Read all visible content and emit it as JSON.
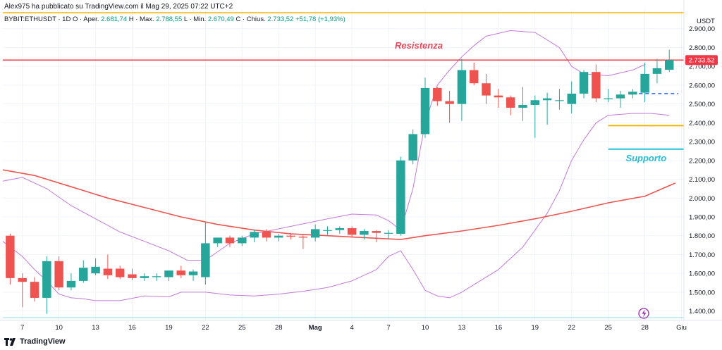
{
  "header": {
    "publisher_line": "Alex975 ha pubblicato su TradingView.com il Mag 29, 2025 07:22 UTC+2",
    "symbol": "BYBIT:ETHUSDT · 1D",
    "ohlc": {
      "open_label": "O · Aper.",
      "open": "2.681,74",
      "high_label": "H · Max.",
      "high": "2.788,55",
      "low_label": "L · Min.",
      "low": "2.670,49",
      "close_label": "C · Chius.",
      "close": "2.733,52",
      "change": "+51,78 (+1,93%)"
    }
  },
  "footer": {
    "brand": "TradingView"
  },
  "colors": {
    "up": "#26a69a",
    "down": "#ef5350",
    "resistance": "#f23645",
    "support": "#22c3d6",
    "ma": "#ef5350",
    "bollinger": "#c27ad9",
    "orange_level": "#f5b400",
    "blue_dashed": "#2962ff",
    "grid": "#f0f3fa"
  },
  "chart_data": {
    "type": "candlestick",
    "currency_label": "USDT",
    "ylim": [
      1350,
      3000
    ],
    "y_ticks": [
      1400,
      1500,
      1600,
      1700,
      1800,
      1900,
      2000,
      2100,
      2200,
      2300,
      2400,
      2500,
      2600,
      2700,
      2800,
      2900
    ],
    "y_tick_labels": [
      "1.400,00",
      "1.500,00",
      "1.600,00",
      "1.700,00",
      "1.800,00",
      "1.900,00",
      "2.000,00",
      "2.100,00",
      "2.200,00",
      "2.300,00",
      "2.400,00",
      "2.500,00",
      "2.600,00",
      "2.700,00",
      "2.800,00",
      "2.900,00"
    ],
    "x_ticks": [
      {
        "day": 7,
        "label": "7"
      },
      {
        "day": 10,
        "label": "10"
      },
      {
        "day": 13,
        "label": "13"
      },
      {
        "day": 16,
        "label": "16"
      },
      {
        "day": 19,
        "label": "19"
      },
      {
        "day": 22,
        "label": "22"
      },
      {
        "day": 25,
        "label": "25"
      },
      {
        "day": 28,
        "label": "28"
      },
      {
        "day": 31,
        "label": "Mag"
      },
      {
        "day": 34,
        "label": "4"
      },
      {
        "day": 37,
        "label": "7"
      },
      {
        "day": 40,
        "label": "10"
      },
      {
        "day": 43,
        "label": "13"
      },
      {
        "day": 46,
        "label": "16"
      },
      {
        "day": 49,
        "label": "19"
      },
      {
        "day": 52,
        "label": "22"
      },
      {
        "day": 55,
        "label": "25"
      },
      {
        "day": 58,
        "label": "28"
      },
      {
        "day": 61,
        "label": "Giu"
      }
    ],
    "x_range": [
      5.4,
      61.2
    ],
    "candles": [
      {
        "day": 6,
        "o": 1800,
        "h": 1810,
        "l": 1540,
        "c": 1575
      },
      {
        "day": 7,
        "o": 1575,
        "h": 1600,
        "l": 1420,
        "c": 1555
      },
      {
        "day": 8,
        "o": 1555,
        "h": 1580,
        "l": 1450,
        "c": 1470
      },
      {
        "day": 9,
        "o": 1470,
        "h": 1690,
        "l": 1385,
        "c": 1665
      },
      {
        "day": 10,
        "o": 1665,
        "h": 1690,
        "l": 1510,
        "c": 1525
      },
      {
        "day": 11,
        "o": 1525,
        "h": 1600,
        "l": 1510,
        "c": 1560
      },
      {
        "day": 12,
        "o": 1560,
        "h": 1670,
        "l": 1550,
        "c": 1630
      },
      {
        "day": 13,
        "o": 1600,
        "h": 1680,
        "l": 1590,
        "c": 1635
      },
      {
        "day": 14,
        "o": 1625,
        "h": 1700,
        "l": 1570,
        "c": 1590
      },
      {
        "day": 15,
        "o": 1625,
        "h": 1640,
        "l": 1570,
        "c": 1580
      },
      {
        "day": 16,
        "o": 1595,
        "h": 1625,
        "l": 1565,
        "c": 1575
      },
      {
        "day": 17,
        "o": 1575,
        "h": 1600,
        "l": 1560,
        "c": 1585
      },
      {
        "day": 18,
        "o": 1580,
        "h": 1600,
        "l": 1560,
        "c": 1585
      },
      {
        "day": 19,
        "o": 1580,
        "h": 1610,
        "l": 1560,
        "c": 1615
      },
      {
        "day": 20,
        "o": 1615,
        "h": 1640,
        "l": 1575,
        "c": 1590
      },
      {
        "day": 21,
        "o": 1590,
        "h": 1620,
        "l": 1560,
        "c": 1610
      },
      {
        "day": 22,
        "o": 1580,
        "h": 1870,
        "l": 1540,
        "c": 1760
      },
      {
        "day": 23,
        "o": 1760,
        "h": 1790,
        "l": 1740,
        "c": 1790
      },
      {
        "day": 24,
        "o": 1790,
        "h": 1800,
        "l": 1740,
        "c": 1760
      },
      {
        "day": 25,
        "o": 1760,
        "h": 1800,
        "l": 1745,
        "c": 1790
      },
      {
        "day": 26,
        "o": 1790,
        "h": 1830,
        "l": 1765,
        "c": 1820
      },
      {
        "day": 27,
        "o": 1820,
        "h": 1835,
        "l": 1770,
        "c": 1790
      },
      {
        "day": 28,
        "o": 1790,
        "h": 1810,
        "l": 1770,
        "c": 1800
      },
      {
        "day": 29,
        "o": 1800,
        "h": 1815,
        "l": 1780,
        "c": 1795
      },
      {
        "day": 30,
        "o": 1795,
        "h": 1810,
        "l": 1730,
        "c": 1790
      },
      {
        "day": 31,
        "o": 1790,
        "h": 1860,
        "l": 1770,
        "c": 1835
      },
      {
        "day": 32,
        "o": 1830,
        "h": 1850,
        "l": 1805,
        "c": 1830
      },
      {
        "day": 33,
        "o": 1830,
        "h": 1850,
        "l": 1810,
        "c": 1840
      },
      {
        "day": 34,
        "o": 1840,
        "h": 1850,
        "l": 1790,
        "c": 1805
      },
      {
        "day": 35,
        "o": 1805,
        "h": 1835,
        "l": 1780,
        "c": 1825
      },
      {
        "day": 36,
        "o": 1825,
        "h": 1830,
        "l": 1765,
        "c": 1815
      },
      {
        "day": 37,
        "o": 1815,
        "h": 1830,
        "l": 1780,
        "c": 1815
      },
      {
        "day": 38,
        "o": 1810,
        "h": 2220,
        "l": 1800,
        "c": 2200
      },
      {
        "day": 39,
        "o": 2200,
        "h": 2365,
        "l": 2180,
        "c": 2340
      },
      {
        "day": 40,
        "o": 2340,
        "h": 2640,
        "l": 2320,
        "c": 2585
      },
      {
        "day": 41,
        "o": 2585,
        "h": 2590,
        "l": 2490,
        "c": 2515
      },
      {
        "day": 42,
        "o": 2515,
        "h": 2570,
        "l": 2400,
        "c": 2500
      },
      {
        "day": 43,
        "o": 2500,
        "h": 2740,
        "l": 2410,
        "c": 2680
      },
      {
        "day": 44,
        "o": 2680,
        "h": 2720,
        "l": 2600,
        "c": 2610
      },
      {
        "day": 45,
        "o": 2610,
        "h": 2660,
        "l": 2500,
        "c": 2545
      },
      {
        "day": 46,
        "o": 2545,
        "h": 2580,
        "l": 2480,
        "c": 2535
      },
      {
        "day": 47,
        "o": 2535,
        "h": 2545,
        "l": 2440,
        "c": 2480
      },
      {
        "day": 48,
        "o": 2480,
        "h": 2590,
        "l": 2410,
        "c": 2495
      },
      {
        "day": 49,
        "o": 2495,
        "h": 2545,
        "l": 2320,
        "c": 2520
      },
      {
        "day": 50,
        "o": 2520,
        "h": 2560,
        "l": 2390,
        "c": 2530
      },
      {
        "day": 51,
        "o": 2520,
        "h": 2580,
        "l": 2470,
        "c": 2520
      },
      {
        "day": 52,
        "o": 2500,
        "h": 2620,
        "l": 2450,
        "c": 2555
      },
      {
        "day": 53,
        "o": 2555,
        "h": 2680,
        "l": 2530,
        "c": 2670
      },
      {
        "day": 54,
        "o": 2670,
        "h": 2710,
        "l": 2510,
        "c": 2530
      },
      {
        "day": 55,
        "o": 2525,
        "h": 2580,
        "l": 2510,
        "c": 2530
      },
      {
        "day": 56,
        "o": 2530,
        "h": 2570,
        "l": 2480,
        "c": 2550
      },
      {
        "day": 57,
        "o": 2550,
        "h": 2580,
        "l": 2530,
        "c": 2565
      },
      {
        "day": 58,
        "o": 2560,
        "h": 2720,
        "l": 2510,
        "c": 2660
      },
      {
        "day": 59,
        "o": 2660,
        "h": 2740,
        "l": 2610,
        "c": 2690
      },
      {
        "day": 60,
        "o": 2681.74,
        "h": 2788.55,
        "l": 2670.49,
        "c": 2733.52
      }
    ],
    "moving_average": [
      [
        5.4,
        2150
      ],
      [
        8,
        2120
      ],
      [
        11,
        2060
      ],
      [
        14,
        2000
      ],
      [
        17,
        1950
      ],
      [
        20,
        1900
      ],
      [
        23,
        1860
      ],
      [
        26,
        1830
      ],
      [
        29,
        1810
      ],
      [
        32,
        1800
      ],
      [
        35,
        1790
      ],
      [
        38,
        1780
      ],
      [
        40,
        1800
      ],
      [
        43,
        1825
      ],
      [
        46,
        1855
      ],
      [
        49,
        1890
      ],
      [
        52,
        1930
      ],
      [
        55,
        1975
      ],
      [
        58,
        2010
      ],
      [
        60.5,
        2080
      ]
    ],
    "bollinger_upper": [
      [
        5.4,
        2090
      ],
      [
        7,
        2110
      ],
      [
        9,
        2050
      ],
      [
        11,
        1960
      ],
      [
        13,
        1890
      ],
      [
        15,
        1820
      ],
      [
        17,
        1770
      ],
      [
        19,
        1720
      ],
      [
        20.5,
        1670
      ],
      [
        22,
        1670
      ],
      [
        24,
        1760
      ],
      [
        26,
        1810
      ],
      [
        29,
        1850
      ],
      [
        32,
        1890
      ],
      [
        34,
        1915
      ],
      [
        36,
        1910
      ],
      [
        37,
        1880
      ],
      [
        38,
        1830
      ],
      [
        39,
        2050
      ],
      [
        40,
        2400
      ],
      [
        41,
        2600
      ],
      [
        42,
        2680
      ],
      [
        43,
        2750
      ],
      [
        44,
        2810
      ],
      [
        45,
        2860
      ],
      [
        47,
        2890
      ],
      [
        49,
        2880
      ],
      [
        51,
        2800
      ],
      [
        52,
        2700
      ],
      [
        53,
        2660
      ],
      [
        55,
        2650
      ],
      [
        57,
        2680
      ],
      [
        58,
        2710
      ]
    ],
    "bollinger_lower": [
      [
        5.4,
        1770
      ],
      [
        7,
        1690
      ],
      [
        8,
        1620
      ],
      [
        9,
        1560
      ],
      [
        10,
        1490
      ],
      [
        11,
        1470
      ],
      [
        12,
        1465
      ],
      [
        13,
        1455
      ],
      [
        15,
        1455
      ],
      [
        17,
        1480
      ],
      [
        19,
        1475
      ],
      [
        20,
        1500
      ],
      [
        22,
        1500
      ],
      [
        24,
        1485
      ],
      [
        26,
        1480
      ],
      [
        28,
        1490
      ],
      [
        30,
        1505
      ],
      [
        32,
        1525
      ],
      [
        34,
        1560
      ],
      [
        36,
        1620
      ],
      [
        37,
        1690
      ],
      [
        38,
        1720
      ],
      [
        39,
        1620
      ],
      [
        40,
        1510
      ],
      [
        41,
        1480
      ],
      [
        42,
        1470
      ],
      [
        43,
        1500
      ],
      [
        44,
        1540
      ],
      [
        46,
        1620
      ],
      [
        48,
        1740
      ],
      [
        50,
        1920
      ],
      [
        51,
        2040
      ],
      [
        52,
        2200
      ],
      [
        53,
        2310
      ],
      [
        54,
        2400
      ],
      [
        55,
        2440
      ],
      [
        57,
        2450
      ],
      [
        58.5,
        2450
      ],
      [
        60,
        2440
      ]
    ],
    "annotations": {
      "resistance": {
        "label": "Resistenza",
        "value": 2733.52
      },
      "support": {
        "label": "Supporto",
        "value": 2260,
        "from_day": 55
      },
      "orange_level": {
        "value": 2385,
        "from_day": 55
      },
      "blue_dashed_level": {
        "value": 2555,
        "from_day": 57
      },
      "top_orange_level": {
        "value": 2985
      },
      "bottom_cyan_level": {
        "value": 1365
      },
      "price_tag": "2.733,52"
    }
  }
}
